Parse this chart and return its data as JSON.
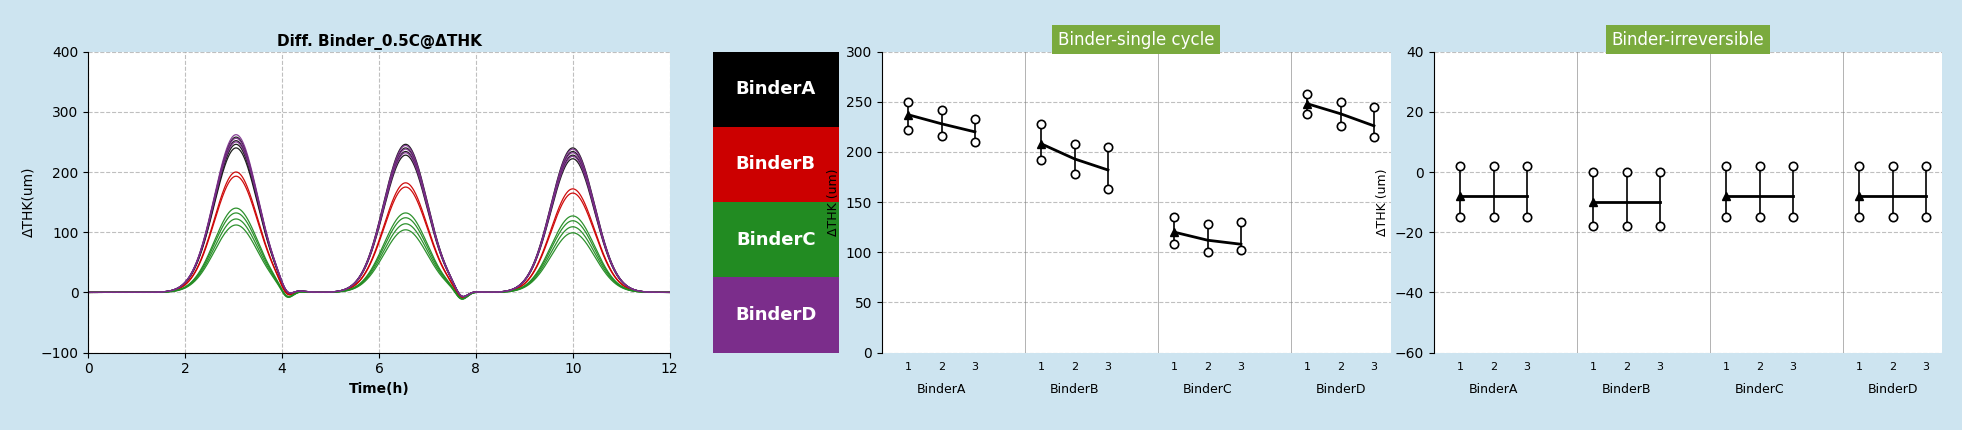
{
  "background_color": "#cde4f0",
  "title1": "Diff. Binder_0.5C@ΔTHK",
  "ylabel1": "ΔTHK(um)",
  "xlabel1": "Time(h)",
  "xlim1": [
    0,
    12
  ],
  "ylim1": [
    -100,
    400
  ],
  "yticks1": [
    -100,
    0,
    100,
    200,
    300,
    400
  ],
  "xticks1": [
    0,
    2,
    4,
    6,
    8,
    10,
    12
  ],
  "legend_labels": [
    "BinderA",
    "BinderB",
    "BinderC",
    "BinderD"
  ],
  "legend_colors": [
    "#000000",
    "#cc0000",
    "#228B22",
    "#7B2D8B"
  ],
  "title2": "Binder-single cycle",
  "title2_bg": "#7aaa3e",
  "ylabel2": "ΔTHK (um)",
  "ylim2": [
    0,
    300
  ],
  "yticks2": [
    0,
    50,
    100,
    150,
    200,
    250,
    300
  ],
  "sc_groups": [
    "BinderA",
    "BinderB",
    "BinderC",
    "BinderD"
  ],
  "sc_mean": [
    237,
    228,
    220,
    208,
    193,
    182,
    120,
    112,
    108,
    248,
    238,
    226
  ],
  "sc_upper": [
    250,
    242,
    233,
    228,
    208,
    205,
    135,
    128,
    130,
    258,
    250,
    245
  ],
  "sc_lower": [
    222,
    216,
    210,
    192,
    178,
    163,
    108,
    100,
    102,
    238,
    226,
    215
  ],
  "title3": "Binder-irreversible",
  "title3_bg": "#7aaa3e",
  "ylabel3": "ΔTHK (um)",
  "ylim3": [
    -60,
    40
  ],
  "yticks3": [
    -60,
    -40,
    -20,
    0,
    20,
    40
  ],
  "irr_mean": [
    -8,
    -8,
    -8,
    -10,
    -10,
    -10,
    -8,
    -8,
    -8,
    -8,
    -8,
    -8
  ],
  "irr_upper": [
    2,
    2,
    2,
    0,
    0,
    0,
    2,
    2,
    2,
    2,
    2,
    2
  ],
  "irr_lower": [
    -15,
    -15,
    -15,
    -18,
    -18,
    -18,
    -15,
    -15,
    -15,
    -15,
    -15,
    -15
  ]
}
